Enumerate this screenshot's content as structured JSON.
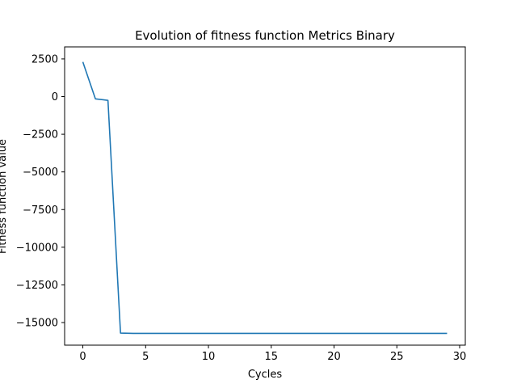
{
  "chart_data": {
    "type": "line",
    "title": "Evolution of fitness function Metrics Binary",
    "xlabel": "Cycles",
    "ylabel": "Fitness function value",
    "xlim": [
      -1.45,
      30.45
    ],
    "ylim": [
      -16500,
      3300
    ],
    "x_ticks": [
      0,
      5,
      10,
      15,
      20,
      25,
      30
    ],
    "y_ticks": [
      2500,
      0,
      -2500,
      -5000,
      -7500,
      -10000,
      -12500,
      -15000
    ],
    "x_tick_labels": [
      "0",
      "5",
      "10",
      "15",
      "20",
      "25",
      "30"
    ],
    "y_tick_labels": [
      "2500",
      "0",
      "−2500",
      "−5000",
      "−7500",
      "−10000",
      "−12500",
      "−15000"
    ],
    "grid": false,
    "legend": "none",
    "series": [
      {
        "color": "#1f77b4",
        "x": [
          0,
          1,
          2,
          3,
          4,
          5,
          6,
          7,
          8,
          9,
          10,
          11,
          12,
          13,
          14,
          15,
          16,
          17,
          18,
          19,
          20,
          21,
          22,
          23,
          24,
          25,
          26,
          27,
          28,
          29
        ],
        "y": [
          2300,
          -150,
          -250,
          -15700,
          -15720,
          -15720,
          -15720,
          -15720,
          -15720,
          -15720,
          -15720,
          -15720,
          -15720,
          -15720,
          -15720,
          -15720,
          -15720,
          -15720,
          -15720,
          -15720,
          -15720,
          -15720,
          -15720,
          -15720,
          -15720,
          -15720,
          -15720,
          -15720,
          -15720,
          -15720
        ]
      }
    ]
  }
}
